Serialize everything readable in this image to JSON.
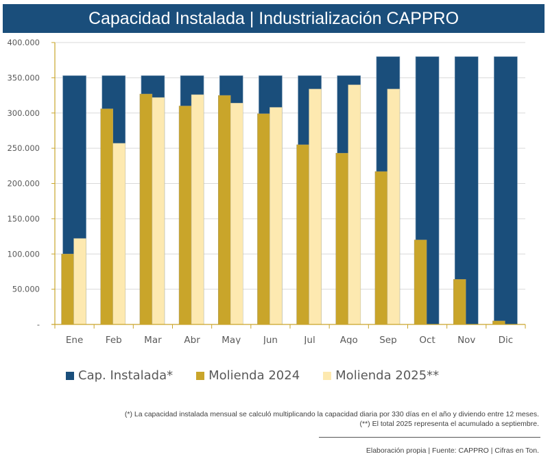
{
  "header": {
    "title": "Capacidad Instalada | Industrialización CAPPRO"
  },
  "colors": {
    "cap": "#1a4e7b",
    "m2024": "#c9a52a",
    "m2025": "#fde9b0",
    "axis": "#c9a52a",
    "grid": "#d9d9d9"
  },
  "chart_data": {
    "type": "bar",
    "title": "Capacidad Instalada | Industrialización CAPPRO",
    "xlabel": "",
    "ylabel": "",
    "ylim": [
      0,
      400000
    ],
    "yticks": [
      0,
      50000,
      100000,
      150000,
      200000,
      250000,
      300000,
      350000,
      400000
    ],
    "ytick_labels": [
      "-",
      "50.000",
      "100.000",
      "150.000",
      "200.000",
      "250.000",
      "300.000",
      "350.000",
      "400.000"
    ],
    "grid": true,
    "legend_position": "bottom",
    "categories": [
      "Ene",
      "Feb",
      "Mar",
      "Abr",
      "May",
      "Jun",
      "Jul",
      "Ago",
      "Sep",
      "Oct",
      "Nov",
      "Dic"
    ],
    "series": [
      {
        "name": "Cap. Instalada*",
        "color": "#1a4e7b",
        "role": "background",
        "values": [
          353000,
          353000,
          353000,
          353000,
          353000,
          353000,
          353000,
          353000,
          380000,
          380000,
          380000,
          380000
        ]
      },
      {
        "name": "Molienda 2024",
        "color": "#c9a52a",
        "role": "left",
        "values": [
          100000,
          306000,
          327000,
          310000,
          325000,
          299000,
          255000,
          243000,
          217000,
          120000,
          64000,
          5000
        ]
      },
      {
        "name": "Molienda 2025**",
        "color": "#fde9b0",
        "role": "right",
        "values": [
          122000,
          257000,
          322000,
          326000,
          314000,
          308000,
          334000,
          340000,
          334000,
          null,
          null,
          null
        ]
      }
    ]
  },
  "legend": {
    "items": [
      {
        "label": "Cap. Instalada*",
        "color": "#1a4e7b"
      },
      {
        "label": "Molienda 2024",
        "color": "#c9a52a"
      },
      {
        "label": "Molienda 2025**",
        "color": "#fde9b0"
      }
    ]
  },
  "notes": {
    "note1": "(*) La capacidad instalada mensual se calculó multiplicando la capacidad diaria por 330 días en el año y diviendo entre 12 meses.",
    "note2": "(**) El total 2025 representa el acumulado a septiembre."
  },
  "source": "Elaboración propia | Fuente: CAPPRO | Cifras en Ton."
}
